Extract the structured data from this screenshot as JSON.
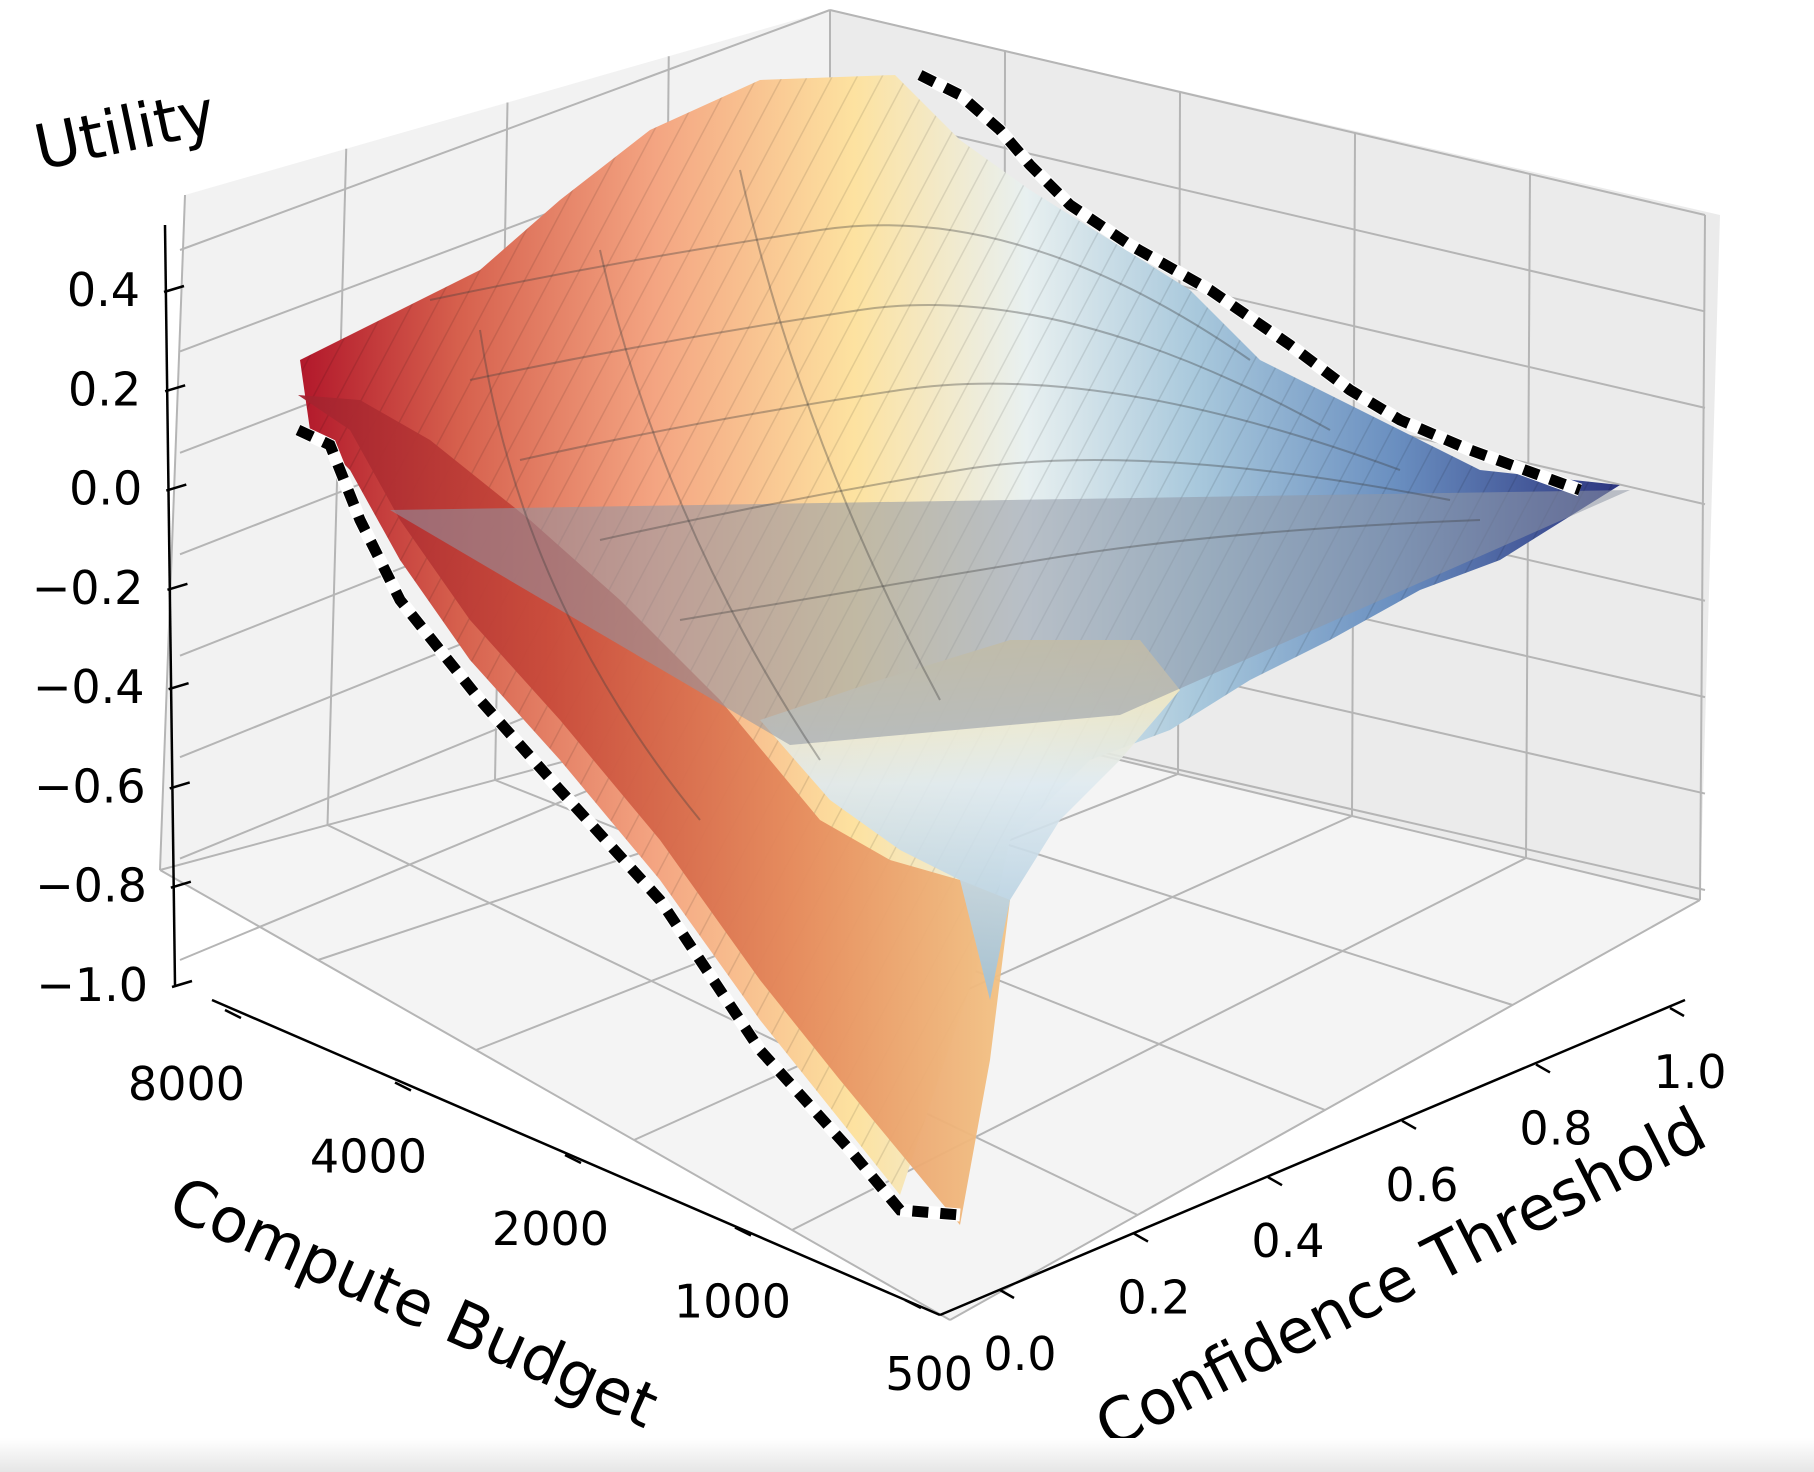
{
  "chart_data": {
    "type": "surface3d",
    "title": "",
    "xlabel": "Confidence Threshold",
    "ylabel": "Compute Budget",
    "zlabel": "Utility",
    "x_ticks": [
      "0.0",
      "0.2",
      "0.4",
      "0.6",
      "0.8",
      "1.0"
    ],
    "y_ticks": [
      "500",
      "1000",
      "2000",
      "4000",
      "8000"
    ],
    "z_ticks": [
      "−1.0",
      "−0.8",
      "−0.6",
      "−0.4",
      "−0.2",
      "0.0",
      "0.2",
      "0.4"
    ],
    "zlim": [
      -1.0,
      0.5
    ],
    "xlim": [
      0.0,
      1.0
    ],
    "colormap": "RdYlBu (red at low confidence threshold, blue at high)",
    "reference_plane_z": 0.0,
    "highlighted_edges": "dashed black-and-white frontier lines along the surface boundary",
    "surface_profile": {
      "x": [
        0.0,
        0.1,
        0.2,
        0.3,
        0.4,
        0.5,
        0.6,
        0.7,
        0.8,
        0.9,
        1.0
      ],
      "utility_at_budget_500": [
        -0.98,
        -0.88,
        -0.72,
        -0.55,
        -0.38,
        -0.22,
        -0.12,
        -0.06,
        -0.03,
        -0.01,
        0.0
      ],
      "utility_at_budget_8000": [
        0.1,
        0.22,
        0.33,
        0.4,
        0.45,
        0.42,
        0.32,
        0.22,
        0.12,
        0.05,
        0.0
      ]
    },
    "grid": true,
    "colors": {
      "red": "#a50026",
      "yellow": "#ffffbf",
      "blue": "#313695",
      "pane": "#f2f2f2",
      "grid": "#b0b0b0"
    }
  }
}
